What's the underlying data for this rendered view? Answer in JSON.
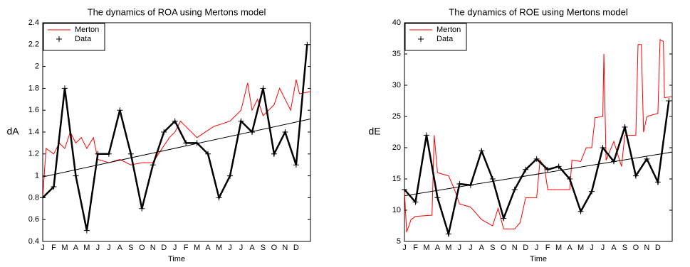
{
  "chart_data": [
    {
      "type": "line",
      "title": "The dynamics of ROA using Mertons model",
      "xlabel": "Time",
      "ylabel": "dA",
      "categories": [
        "J",
        "F",
        "M",
        "A",
        "M",
        "J",
        "J",
        "A",
        "S",
        "O",
        "N",
        "D",
        "J",
        "F",
        "M",
        "A",
        "M",
        "J",
        "J",
        "A",
        "S",
        "O",
        "N",
        "D",
        null
      ],
      "xlim": [
        0,
        24.3
      ],
      "ylim": [
        0.4,
        2.4
      ],
      "yticks": [
        0.4,
        0.6,
        0.8,
        1,
        1.2,
        1.4,
        1.6,
        1.8,
        2,
        2.2,
        2.4
      ],
      "legend": "upper left",
      "series": [
        {
          "name": "Merton",
          "color": "#ff0000",
          "x": [
            0,
            0.3,
            1,
            1.5,
            2,
            2.5,
            3,
            3.5,
            4,
            4.6,
            5,
            6,
            7,
            8,
            9,
            10,
            10.5,
            11.5,
            12,
            12.5,
            13,
            14,
            15.5,
            17,
            18,
            18.6,
            19,
            19.5,
            20,
            21,
            21.5,
            22,
            22.5,
            23,
            23.3,
            24.3
          ],
          "values": [
            0.8,
            1.25,
            1.2,
            1.3,
            1.25,
            1.4,
            1.3,
            1.35,
            1.25,
            1.35,
            1.15,
            1.12,
            1.15,
            1.1,
            1.12,
            1.12,
            1.2,
            1.35,
            1.4,
            1.5,
            1.45,
            1.35,
            1.45,
            1.5,
            1.6,
            1.85,
            1.6,
            1.7,
            1.55,
            1.65,
            1.8,
            1.7,
            1.6,
            1.88,
            1.75,
            1.77
          ]
        },
        {
          "name": "Data",
          "color": "#000000",
          "marker": "+",
          "values": [
            0.8,
            0.9,
            1.8,
            1.0,
            0.5,
            1.2,
            1.2,
            1.6,
            1.2,
            0.7,
            1.1,
            1.4,
            1.5,
            1.3,
            1.3,
            1.2,
            0.8,
            1.0,
            1.5,
            1.4,
            1.8,
            1.2,
            1.4,
            1.1,
            2.2
          ]
        },
        {
          "color": "#000000",
          "x": [
            0,
            24.3
          ],
          "values": [
            0.99,
            1.52
          ]
        }
      ]
    },
    {
      "type": "line",
      "title": "The dynamics of ROE using Mertons model",
      "xlabel": "Time",
      "ylabel": "dE",
      "categories": [
        "J",
        "F",
        "M",
        "A",
        "M",
        "J",
        "J",
        "A",
        "S",
        "O",
        "N",
        "D",
        "J",
        "F",
        "M",
        "A",
        "M",
        "J",
        "J",
        "A",
        "S",
        "O",
        "N",
        "D",
        null
      ],
      "xlim": [
        0,
        24.3
      ],
      "ylim": [
        5,
        40
      ],
      "yticks": [
        5,
        10,
        15,
        20,
        25,
        30,
        35,
        40
      ],
      "legend": "upper left",
      "series": [
        {
          "name": "Merton",
          "color": "#ff0000",
          "x": [
            0,
            0.2,
            0.6,
            1,
            2.5,
            2.7,
            3,
            4,
            4.5,
            5,
            6,
            7,
            8,
            8.5,
            9,
            10,
            10.5,
            11,
            12,
            12.3,
            12.7,
            13,
            15,
            15.2,
            16,
            16.5,
            17,
            17.3,
            18,
            18.1,
            18.3,
            19,
            19.7,
            20,
            21,
            21.2,
            21.5,
            21.7,
            22,
            23,
            23.2,
            23.5,
            23.6,
            24.3
          ],
          "values": [
            13,
            6.5,
            8.5,
            9,
            9.2,
            22,
            16,
            15.5,
            13.5,
            11,
            10.5,
            8.5,
            7.5,
            10.3,
            7,
            7,
            8,
            12,
            12,
            18,
            17,
            13.3,
            13.3,
            18,
            17.8,
            20,
            20,
            24.8,
            25,
            35,
            18,
            21,
            17,
            22,
            22,
            36.5,
            36.5,
            22.5,
            25,
            25.5,
            37.3,
            37,
            28,
            28.2
          ]
        },
        {
          "name": "Data",
          "color": "#000000",
          "marker": "+",
          "values": [
            13.3,
            11.3,
            22,
            12,
            6.2,
            14.2,
            14,
            19.5,
            15,
            8.7,
            13.3,
            16.5,
            18.2,
            16.5,
            17,
            15,
            9.8,
            13,
            20,
            17.8,
            23.3,
            15.5,
            18.2,
            14.5,
            27.5
          ]
        },
        {
          "color": "#000000",
          "x": [
            0,
            24.3
          ],
          "values": [
            12.3,
            19.3
          ]
        }
      ]
    }
  ]
}
